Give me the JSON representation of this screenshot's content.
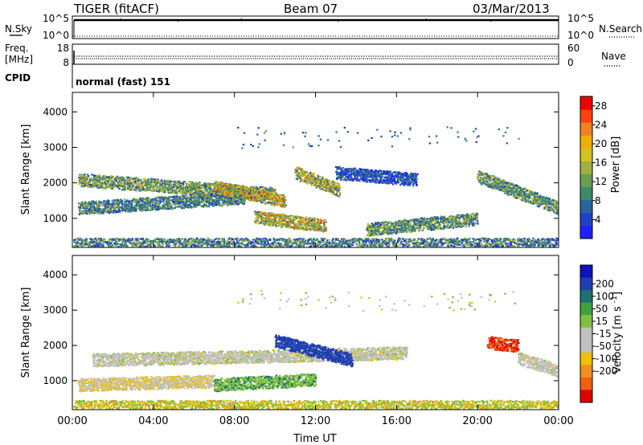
{
  "header": {
    "radar": "TIGER (fitACF)",
    "beam": "Beam 07",
    "date": "03/Mar/2013"
  },
  "nsky": {
    "left_label": "N.Sky",
    "left_ticks": [
      "10^5",
      "10^0"
    ],
    "right_ticks": [
      "10^5",
      "10^0"
    ],
    "right_label": "N.Search"
  },
  "freq": {
    "left_label_1": "Freq.",
    "left_label_2": "[MHz]",
    "left_ticks": [
      "18",
      "8"
    ],
    "right_ticks": [
      "60",
      "0"
    ],
    "right_label": "Nave"
  },
  "cpid": {
    "label": "CPID",
    "program": "normal (fast) 151"
  },
  "chart_data": [
    {
      "type": "heatmap",
      "title": "Power",
      "ylabel": "Slant Range [km]",
      "ylim": [
        180,
        4550
      ],
      "yticks": [
        1000,
        2000,
        3000,
        4000
      ],
      "xlim": [
        "00:00",
        "24:00"
      ],
      "colorbar_label": "Power [dB]",
      "colorbar_range": [
        0,
        30
      ],
      "colorbar_ticks": [
        4,
        8,
        12,
        16,
        20,
        24,
        28
      ],
      "colorbar_colors": [
        "#1f1fff",
        "#2040c8",
        "#2a64a0",
        "#3b8a6e",
        "#6a9e50",
        "#9fb040",
        "#d6c020",
        "#f0b000",
        "#f08020",
        "#ff4010",
        "#ee0000"
      ],
      "features": [
        {
          "t0": 0.3,
          "t1": 10.0,
          "r0": 2100,
          "r1": 1700,
          "peak_db": 22
        },
        {
          "t0": 0.3,
          "t1": 8.5,
          "r0": 1300,
          "r1": 1600,
          "peak_db": 18
        },
        {
          "t0": 7.0,
          "t1": 10.5,
          "r0": 1900,
          "r1": 1500,
          "peak_db": 28
        },
        {
          "t0": 9.0,
          "t1": 12.5,
          "r0": 1050,
          "r1": 800,
          "peak_db": 28
        },
        {
          "t0": 11.0,
          "t1": 13.2,
          "r0": 2300,
          "r1": 1800,
          "peak_db": 26
        },
        {
          "t0": 13.0,
          "t1": 17.0,
          "r0": 2300,
          "r1": 2100,
          "peak_db": 12
        },
        {
          "t0": 14.5,
          "t1": 20.0,
          "r0": 700,
          "r1": 1000,
          "peak_db": 20
        },
        {
          "t0": 20.0,
          "t1": 24.0,
          "r0": 2200,
          "r1": 1300,
          "peak_db": 20
        },
        {
          "t0": 0.0,
          "t1": 24.0,
          "r0": 300,
          "r1": 300,
          "peak_db": 10
        }
      ]
    },
    {
      "type": "heatmap",
      "title": "Velocity",
      "xlabel": "Time UT",
      "ylabel": "Slant Range [km]",
      "ylim": [
        180,
        4550
      ],
      "yticks": [
        1000,
        2000,
        3000,
        4000
      ],
      "xticks": [
        "00:00",
        "04:00",
        "08:00",
        "12:00",
        "16:00",
        "20:00",
        "00:00"
      ],
      "colorbar_label": "Velocity [m s^-1]",
      "colorbar_range": [
        -250,
        250
      ],
      "colorbar_ticks": [
        200,
        100,
        50,
        15,
        -15,
        -50,
        -100,
        -200
      ],
      "colorbar_colors": [
        "#1010c0",
        "#1f3fb0",
        "#1f6f6f",
        "#40a040",
        "#80c040",
        "#c0c0c0",
        "#c0c0c0",
        "#f0c000",
        "#f09020",
        "#f06010",
        "#e00000"
      ],
      "features": [
        {
          "t0": 1.0,
          "t1": 16.5,
          "r0": 1600,
          "r1": 1800,
          "vel": 0
        },
        {
          "t0": 0.3,
          "t1": 7.0,
          "r0": 900,
          "r1": 1000,
          "vel": -10
        },
        {
          "t0": 10.0,
          "t1": 13.8,
          "r0": 2150,
          "r1": 1600,
          "vel": 180
        },
        {
          "t0": 7.0,
          "t1": 12.0,
          "r0": 900,
          "r1": 1050,
          "vel": 40
        },
        {
          "t0": 20.5,
          "t1": 22.0,
          "r0": 2100,
          "r1": 2000,
          "vel": -200
        },
        {
          "t0": 22.0,
          "t1": 24.0,
          "r0": 1650,
          "r1": 1300,
          "vel": 0
        },
        {
          "t0": 0.0,
          "t1": 24.0,
          "r0": 300,
          "r1": 300,
          "vel": 30
        }
      ]
    }
  ]
}
